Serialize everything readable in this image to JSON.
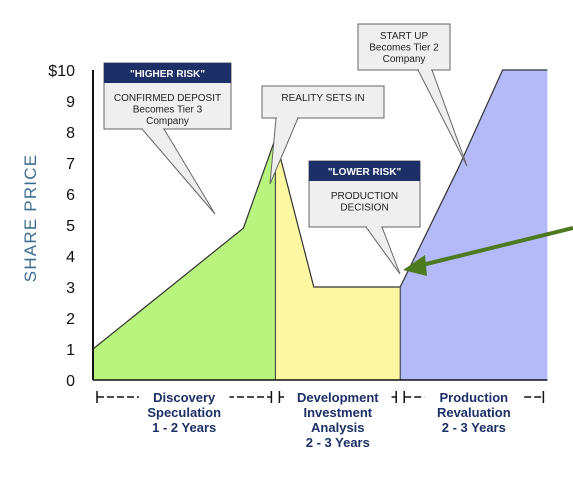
{
  "chart_data": {
    "type": "area",
    "ylabel": "SHARE PRICE",
    "ylim": [
      0,
      10
    ],
    "y_ticks": [
      "0",
      "1",
      "2",
      "3",
      "4",
      "5",
      "6",
      "7",
      "8",
      "9",
      "$10"
    ],
    "phases": [
      {
        "name": "discovery",
        "label": [
          "Discovery",
          "Speculation",
          "1 - 2 Years"
        ],
        "color": "#b9f47e",
        "points": [
          [
            0,
            1
          ],
          [
            2.35,
            4.9
          ],
          [
            2.85,
            7.8
          ]
        ]
      },
      {
        "name": "development",
        "label": [
          "Development",
          "Investment",
          "Analysis",
          "2 - 3 Years"
        ],
        "color": "#fdf7a2",
        "points": [
          [
            2.85,
            7.8
          ],
          [
            3.45,
            3
          ],
          [
            4.8,
            3
          ]
        ]
      },
      {
        "name": "production",
        "label": [
          "Production",
          "Revaluation",
          "2 - 3 Years"
        ],
        "color": "#b3baf7",
        "points": [
          [
            4.8,
            3
          ],
          [
            5.7,
            6.8
          ],
          [
            6.4,
            10
          ],
          [
            7.1,
            10
          ]
        ]
      }
    ],
    "annotations": [
      {
        "name": "higher-risk",
        "header": "\"HIGHER RISK\"",
        "lines": [
          "CONFIRMED DEPOSIT",
          "Becomes Tier 3",
          "Company"
        ]
      },
      {
        "name": "reality-sets-in",
        "lines": [
          "REALITY SETS IN"
        ]
      },
      {
        "name": "lower-risk",
        "header": "\"LOWER RISK\"",
        "lines": [
          "PRODUCTION",
          "DECISION"
        ]
      },
      {
        "name": "start-up",
        "lines": [
          "START UP",
          "Becomes Tier 2",
          "Company"
        ]
      }
    ],
    "colors": {
      "axis": "#111111",
      "ylabel": "#3b6f91",
      "callout_header": "#1c2f66",
      "callout_fill": "#efefef",
      "arrow": "#4d7a1f"
    }
  }
}
